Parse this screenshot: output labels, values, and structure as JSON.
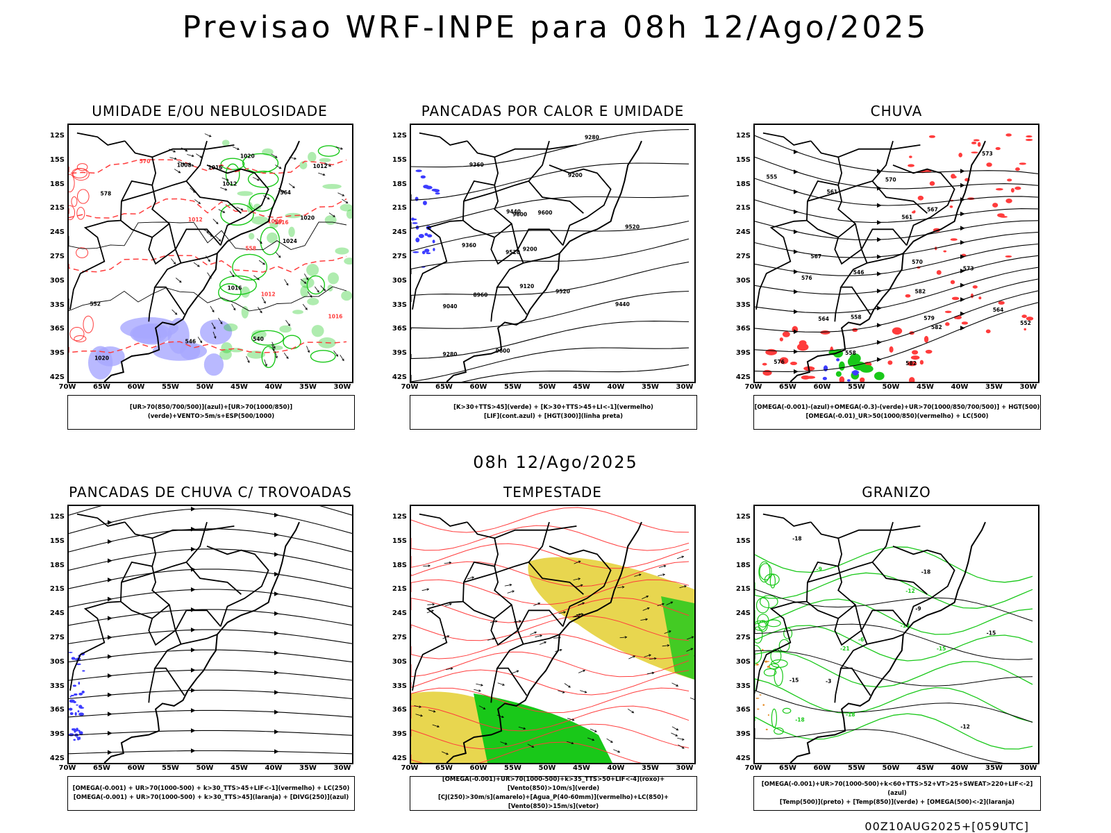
{
  "header": {
    "title": "Previsao WRF-INPE  para 08h 12/Ago/2025",
    "subtitle": "08h 12/Ago/2025",
    "run_stamp": "00Z10AUG2025+[059UTC]"
  },
  "axes": {
    "lat_labels": [
      "12S",
      "15S",
      "18S",
      "21S",
      "24S",
      "27S",
      "30S",
      "33S",
      "36S",
      "39S",
      "42S"
    ],
    "lon_labels": [
      "70W",
      "65W",
      "60W",
      "55W",
      "50W",
      "45W",
      "40W",
      "35W",
      "30W"
    ]
  },
  "colors": {
    "green": "#19c819",
    "red": "#ff3c3c",
    "blue": "#3c3cff",
    "lavender": "#a8a8ff",
    "yellow": "#e6d23c",
    "orange": "#e68c28",
    "black": "#000000"
  },
  "panels": [
    {
      "id": "umidade",
      "title": "UMIDADE E/OU NEBULOSIDADE",
      "legend_lines": [
        "[UR>70(850/700/500)](azul)+[UR>70(1000/850)](verde)+VENTO>5m/s+ESP(500/1000)"
      ],
      "contour_labels": [
        "570",
        "578",
        "1016",
        "1012",
        "1020",
        "1024",
        "1020",
        "1016",
        "564",
        "558",
        "552",
        "1020",
        "1016",
        "1012",
        "1008",
        "1012",
        "546",
        "540",
        "1016",
        "1012",
        "1020"
      ]
    },
    {
      "id": "pancadas-calor",
      "title": "PANCADAS POR CALOR E UMIDADE",
      "legend_lines": [
        "[K>30+TTS>45](verde) + [K>30+TTS>45+LI<-1](vermelho)",
        "[LIF](cont.azul) + [HGT(300)](linha preta)"
      ],
      "contour_labels": [
        "9600",
        "9600",
        "9600",
        "9520",
        "9520",
        "9520",
        "9440",
        "9440",
        "9360",
        "9360",
        "9280",
        "9280",
        "9200",
        "9200",
        "9120",
        "9040",
        "8960"
      ]
    },
    {
      "id": "chuva",
      "title": "CHUVA",
      "legend_lines": [
        "[OMEGA(-0.001)-(azul)+OMEGA(-0.3)-(verde)+UR>70(1000/850/700/500)] + HGT(500)",
        "[OMEGA(-0.01)_UR>50(1000/850)(vermelho) + LC(500)"
      ],
      "contour_labels": [
        "582",
        "582",
        "582",
        "579",
        "576",
        "573",
        "570",
        "567",
        "564",
        "561",
        "558",
        "555",
        "576",
        "573",
        "570",
        "567",
        "564",
        "561",
        "558",
        "552",
        "546"
      ]
    },
    {
      "id": "pancadas-trovoadas",
      "title": "PANCADAS DE CHUVA C/ TROVOADAS",
      "legend_lines": [
        "[OMEGA(-0.001) + UR>70(1000-500) + k>30_TTS>45+LIF<-1](vermelho) + LC(250)",
        "[OMEGA(-0.001) + UR>70(1000-500) + k>30_TTS>45](laranja) + [DIVG(250)](azul)"
      ],
      "contour_labels": []
    },
    {
      "id": "tempestade",
      "title": "TEMPESTADE",
      "legend_lines": [
        "[OMEGA(-0.001)+UR>70(1000-500)+k>35_TTS>50+LIF<-4](roxo)+[Vento(850)>10m/s](verde)",
        "[CJ(250)>30m/s](amarelo)+[Agua_P(40-60mm)](vermelho)+LC(850)+[Vento(850)>15m/s](vetor)"
      ],
      "contour_labels": []
    },
    {
      "id": "granizo",
      "title": "GRANIZO",
      "legend_lines": [
        "[OMEGA(-0.001)+UR>70(1000-500)+k<60+TTS>52+VT>25+SWEAT>220+LIF<-2](azul)",
        "[Temp(500)](preto) + [Temp(850)](verde) + [OMEGA(500)<-2](laranja)"
      ],
      "contour_labels": [
        "-9",
        "-12",
        "-15",
        "-15",
        "-18",
        "-18",
        "-18",
        "-18",
        "-21",
        "-3",
        "-6",
        "-9",
        "-12",
        "-15",
        "-18"
      ]
    }
  ]
}
